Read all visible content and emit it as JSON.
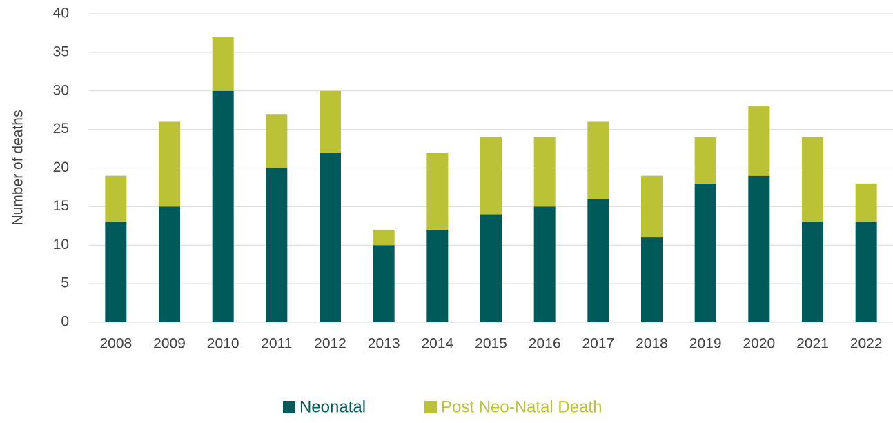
{
  "chart_data": {
    "type": "stacked_bar",
    "y_label": "Number of deaths",
    "categories": [
      "2008",
      "2009",
      "2010",
      "2011",
      "2012",
      "2013",
      "2014",
      "2015",
      "2016",
      "2017",
      "2018",
      "2019",
      "2020",
      "2021",
      "2022"
    ],
    "series": [
      {
        "name": "Neonatal",
        "color": "#005a5a",
        "values": [
          13,
          15,
          30,
          20,
          22,
          10,
          12,
          14,
          15,
          16,
          11,
          18,
          19,
          13,
          13
        ]
      },
      {
        "name": "Post Neo-Natal Death",
        "color": "#bcc236",
        "values": [
          6,
          11,
          7,
          7,
          8,
          2,
          10,
          10,
          9,
          10,
          8,
          6,
          9,
          11,
          5
        ]
      }
    ],
    "ylim": [
      0,
      40
    ],
    "yticks": [
      0,
      5,
      10,
      15,
      20,
      25,
      30,
      35,
      40
    ],
    "grid": true,
    "legend": "bottom"
  }
}
